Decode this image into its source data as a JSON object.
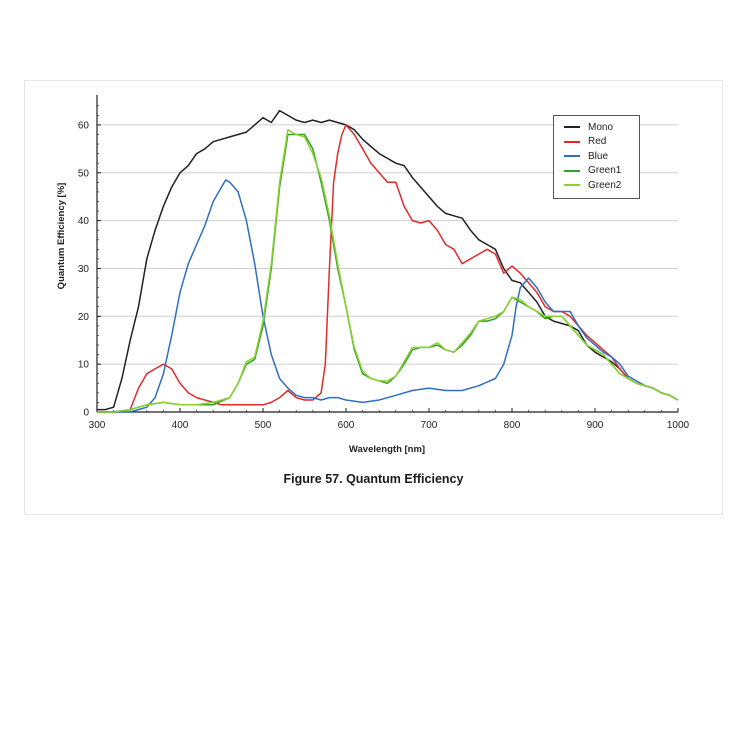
{
  "figure": {
    "caption": "Figure 57. Quantum Efficiency"
  },
  "chart_data": {
    "type": "line",
    "title": "",
    "xlabel": "Wavelength [nm]",
    "ylabel": "Quantum Efficiency [%]",
    "xlim": [
      300,
      1000
    ],
    "ylim": [
      0,
      65
    ],
    "xticks": [
      300,
      400,
      500,
      600,
      700,
      800,
      900,
      1000
    ],
    "yticks": [
      0,
      10,
      20,
      30,
      40,
      50,
      60
    ],
    "grid": true,
    "legend_position": "top-right",
    "series": [
      {
        "name": "Mono",
        "color": "#222222",
        "x": [
          300,
          310,
          320,
          330,
          340,
          350,
          360,
          370,
          380,
          390,
          400,
          410,
          420,
          430,
          440,
          450,
          460,
          470,
          480,
          490,
          500,
          510,
          520,
          530,
          540,
          550,
          560,
          570,
          580,
          590,
          600,
          610,
          620,
          630,
          640,
          650,
          660,
          670,
          680,
          690,
          700,
          710,
          720,
          730,
          740,
          750,
          760,
          770,
          780,
          790,
          800,
          810,
          820,
          830,
          840,
          850,
          860,
          870,
          880,
          890,
          900,
          910,
          920,
          930,
          940,
          950,
          960,
          970,
          980,
          990,
          1000
        ],
        "y": [
          0.5,
          0.5,
          1,
          7,
          15,
          22,
          32,
          38,
          43,
          47,
          50,
          51.5,
          54,
          55,
          56.5,
          57,
          57.5,
          58,
          58.5,
          60,
          61.5,
          60.5,
          63,
          62,
          61,
          60.5,
          61,
          60.5,
          61,
          60.5,
          60,
          59,
          57,
          55.5,
          54,
          53,
          52,
          51.5,
          49,
          47,
          45,
          43,
          41.5,
          41,
          40.5,
          38,
          36,
          35,
          34,
          30,
          27.5,
          27,
          25,
          23,
          20,
          19,
          18.5,
          18,
          17,
          14,
          12.5,
          11.5,
          10.5,
          9,
          7,
          6,
          5.5,
          5,
          4,
          3.5,
          2.5
        ]
      },
      {
        "name": "Red",
        "color": "#e02b2b",
        "x": [
          300,
          320,
          340,
          350,
          360,
          370,
          380,
          390,
          400,
          410,
          420,
          430,
          440,
          450,
          460,
          470,
          480,
          490,
          500,
          510,
          520,
          530,
          540,
          550,
          560,
          570,
          575,
          580,
          585,
          590,
          595,
          600,
          610,
          620,
          630,
          640,
          650,
          660,
          670,
          680,
          690,
          700,
          710,
          720,
          730,
          740,
          750,
          760,
          770,
          780,
          790,
          800,
          810,
          820,
          830,
          840,
          850,
          860,
          870,
          880,
          890,
          900,
          910,
          920,
          930,
          940,
          950,
          960,
          970,
          980,
          990,
          1000
        ],
        "y": [
          0,
          0,
          0.5,
          5,
          8,
          9,
          10,
          9,
          6,
          4,
          3,
          2.5,
          2,
          1.5,
          1.5,
          1.5,
          1.5,
          1.5,
          1.5,
          2,
          3,
          4.5,
          3,
          2.5,
          2.5,
          4,
          10,
          30,
          48,
          54,
          58,
          60,
          58,
          55,
          52,
          50,
          48,
          48,
          43,
          40,
          39.5,
          40,
          38,
          35,
          34,
          31,
          32,
          33,
          34,
          33,
          29,
          30.5,
          29,
          27,
          25,
          22,
          21,
          21,
          20,
          18,
          16,
          14.5,
          13,
          11.5,
          9,
          7,
          6,
          5.5,
          5,
          4,
          3.5,
          2.5
        ]
      },
      {
        "name": "Blue",
        "color": "#2e6fc4",
        "x": [
          300,
          320,
          340,
          350,
          360,
          370,
          380,
          390,
          400,
          410,
          420,
          430,
          440,
          450,
          455,
          460,
          470,
          480,
          490,
          500,
          510,
          520,
          530,
          540,
          550,
          560,
          570,
          580,
          590,
          600,
          620,
          640,
          660,
          680,
          700,
          720,
          740,
          760,
          780,
          790,
          800,
          805,
          810,
          815,
          820,
          830,
          840,
          850,
          860,
          870,
          880,
          890,
          900,
          910,
          920,
          930,
          940,
          950,
          960,
          970,
          980,
          990,
          1000
        ],
        "y": [
          0,
          0,
          0,
          0.5,
          1,
          3,
          8,
          16,
          25,
          31,
          35,
          39,
          44,
          47,
          48.5,
          48,
          46,
          40,
          31,
          20,
          12,
          7,
          5,
          3.5,
          3,
          3,
          2.5,
          3,
          3,
          2.5,
          2,
          2.5,
          3.5,
          4.5,
          5,
          4.5,
          4.5,
          5.5,
          7,
          10,
          16,
          22,
          26,
          27,
          28,
          26,
          23,
          21,
          21,
          21,
          18,
          15.5,
          14,
          12.5,
          11.5,
          10,
          7.5,
          6.5,
          5.5,
          5,
          4,
          3.5,
          2.5
        ]
      },
      {
        "name": "Green1",
        "color": "#33a02c",
        "x": [
          300,
          320,
          340,
          360,
          380,
          400,
          420,
          440,
          460,
          470,
          480,
          490,
          500,
          510,
          520,
          530,
          540,
          550,
          560,
          570,
          580,
          590,
          600,
          610,
          620,
          630,
          640,
          650,
          660,
          670,
          680,
          690,
          700,
          710,
          720,
          730,
          740,
          750,
          760,
          770,
          780,
          790,
          800,
          810,
          820,
          830,
          840,
          850,
          860,
          870,
          880,
          890,
          900,
          910,
          920,
          930,
          940,
          950,
          960,
          970,
          980,
          990,
          1000
        ],
        "y": [
          0,
          0,
          0.5,
          1.5,
          2,
          1.5,
          1.5,
          1.5,
          3,
          6,
          10,
          11,
          18,
          30,
          47,
          58,
          58,
          58,
          55,
          48,
          40,
          30,
          22,
          13,
          8,
          7,
          6.5,
          6,
          7.5,
          10,
          13,
          13.5,
          13.5,
          14,
          13,
          12.5,
          14,
          16,
          19,
          19,
          19.5,
          21,
          24,
          23,
          22,
          21,
          19.5,
          20,
          20,
          18,
          16,
          14,
          13,
          12,
          10,
          8,
          7,
          6,
          5.5,
          5,
          4,
          3.5,
          2.5
        ]
      },
      {
        "name": "Green2",
        "color": "#8bd12e",
        "x": [
          300,
          320,
          340,
          360,
          380,
          400,
          420,
          440,
          460,
          470,
          480,
          490,
          500,
          510,
          520,
          530,
          540,
          550,
          560,
          570,
          580,
          590,
          600,
          610,
          620,
          630,
          640,
          650,
          660,
          670,
          680,
          690,
          700,
          710,
          720,
          730,
          740,
          750,
          760,
          770,
          780,
          790,
          800,
          810,
          820,
          830,
          840,
          850,
          860,
          870,
          880,
          890,
          900,
          910,
          920,
          930,
          940,
          950,
          960,
          970,
          980,
          990,
          1000
        ],
        "y": [
          0,
          0,
          0.5,
          1.5,
          2,
          1.5,
          1.5,
          2,
          3,
          6,
          10.5,
          11.5,
          19,
          31,
          48,
          59,
          58,
          57.5,
          54,
          49,
          41,
          31,
          22,
          13.5,
          8.5,
          7,
          6.5,
          6.5,
          7.5,
          10.5,
          13.5,
          13.5,
          13.5,
          14.5,
          13,
          12.5,
          14.5,
          16.5,
          19,
          19.5,
          20,
          21,
          24,
          23.5,
          22,
          21,
          20,
          20,
          20,
          18,
          16,
          14,
          13,
          12,
          10,
          8,
          7,
          6,
          5.5,
          5,
          4,
          3.5,
          2.5
        ]
      }
    ]
  }
}
